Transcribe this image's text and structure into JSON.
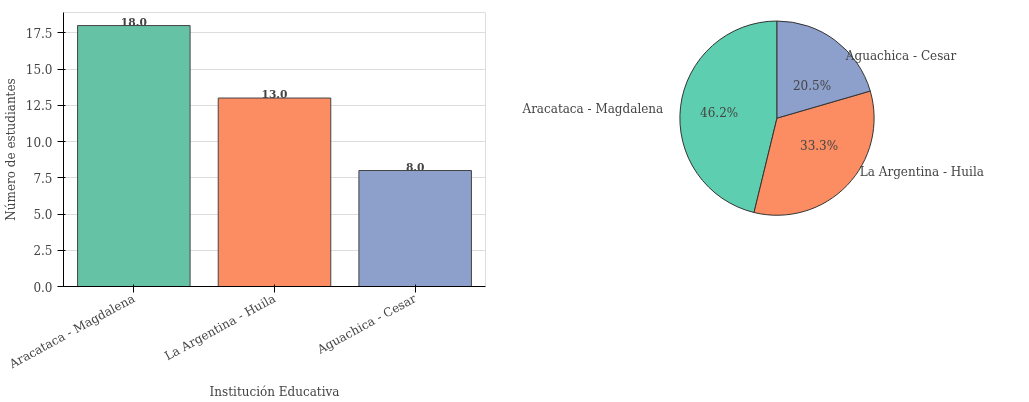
{
  "chart_data": [
    {
      "type": "bar",
      "xlabel": "Institución Educativa",
      "ylabel": "Número de estudiantes",
      "categories": [
        "Aracataca - Magdalena",
        "La Argentina - Huila",
        "Aguachica - Cesar"
      ],
      "values": [
        18,
        13,
        8
      ],
      "colors": [
        "#66c2a5",
        "#fc8d62",
        "#8da0cb"
      ],
      "value_labels": [
        "18.0",
        "13.0",
        "8.0"
      ],
      "ylim": [
        0,
        18.9
      ],
      "yticks": [
        {
          "value": 0,
          "label": "0.0"
        },
        {
          "value": 2.5,
          "label": "2.5"
        },
        {
          "value": 5,
          "label": "5.0"
        },
        {
          "value": 7.5,
          "label": "7.5"
        },
        {
          "value": 10,
          "label": "10.0"
        },
        {
          "value": 12.5,
          "label": "12.5"
        },
        {
          "value": 15,
          "label": "15.0"
        },
        {
          "value": 17.5,
          "label": "17.5"
        }
      ],
      "grid": "y"
    },
    {
      "type": "pie",
      "categories": [
        "Aracataca - Magdalena",
        "La Argentina - Huila",
        "Aguachica - Cesar"
      ],
      "values": [
        46.2,
        33.3,
        20.5
      ],
      "colors": [
        "#5dcfb0",
        "#fc8d62",
        "#8da0cb"
      ],
      "value_labels": [
        "46.2%",
        "33.3%",
        "20.5%"
      ]
    }
  ]
}
